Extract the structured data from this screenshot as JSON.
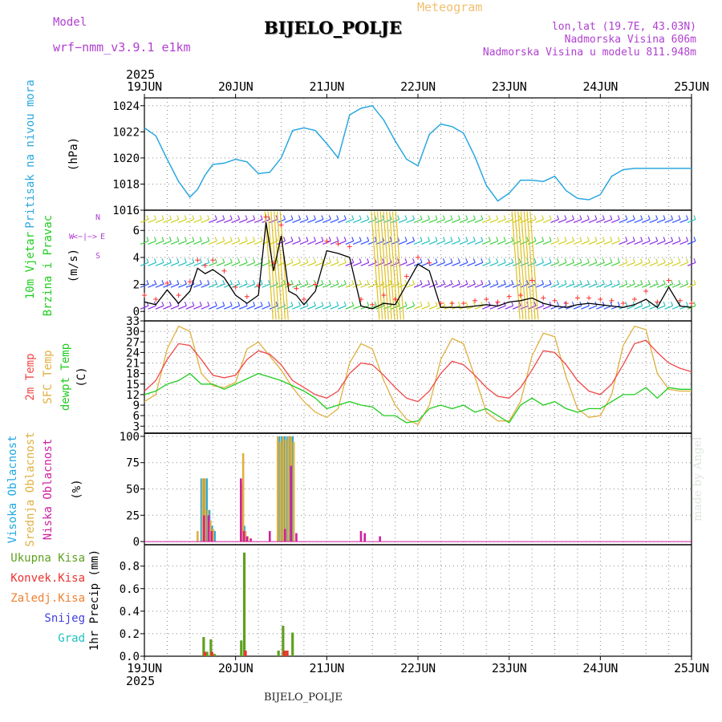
{
  "header": {
    "model_label": "Model",
    "model_name": "wrf−nmm_v3.9.1  e1km",
    "station": "BIJELO_POLJE",
    "meteogram_label": "Meteogram",
    "lonlat": "lon,lat (19.7E, 43.03N)",
    "altitude": "Nadmorska Visina 606m",
    "model_altitude": "Nadmorska Visina u modelu 811.948m"
  },
  "footer": {
    "station": "BIJELO_POLJE",
    "credit": "made by Angel"
  },
  "colors": {
    "pressure": "#2aa8e0",
    "wind_speed": "#000000",
    "gust_marker": "#ff3030",
    "temp_2m": "#f04848",
    "temp_sfc": "#e0b040",
    "dewpoint": "#20cc20",
    "cloud_high": "#20a8e0",
    "cloud_mid": "#e0b040",
    "cloud_low": "#d020a0",
    "precip_total": "#60a020",
    "precip_conv": "#f03030"
  },
  "chart_data": [
    {
      "type": "line",
      "id": "pressure",
      "panel_labels": [
        "Pritisak na nivou mora",
        "(hPa)"
      ],
      "x_unit": "hours since 2025-06-19 00:00 UTC",
      "xlim": [
        0,
        144
      ],
      "ylim": [
        1016,
        1024.6
      ],
      "yticks": [
        1016,
        1018,
        1020,
        1022,
        1024
      ],
      "grid": true,
      "series": [
        {
          "x": [
            0,
            3,
            6,
            9,
            12,
            14,
            16,
            18,
            21,
            24,
            27,
            30,
            33,
            36,
            39,
            42,
            45,
            48,
            51,
            54,
            57,
            60,
            63,
            66,
            69,
            72,
            75,
            78,
            81,
            84,
            87,
            90,
            93,
            96,
            99,
            102,
            105,
            108,
            111,
            114,
            117,
            120,
            123,
            126,
            129,
            132,
            135,
            138,
            141,
            144
          ],
          "y": [
            1022.3,
            1021.7,
            1019.9,
            1018.2,
            1017.0,
            1017.6,
            1018.7,
            1019.5,
            1019.6,
            1019.9,
            1019.7,
            1018.8,
            1018.9,
            1020.0,
            1022.1,
            1022.3,
            1022.1,
            1021.1,
            1020.0,
            1023.3,
            1023.8,
            1024.0,
            1022.9,
            1021.3,
            1019.9,
            1019.4,
            1021.8,
            1022.6,
            1022.4,
            1021.9,
            1020.1,
            1017.9,
            1016.7,
            1017.3,
            1018.3,
            1018.3,
            1018.2,
            1018.6,
            1017.5,
            1016.9,
            1016.8,
            1017.2,
            1018.6,
            1019.1,
            1019.2,
            1019.2,
            1019.2,
            1019.2,
            1019.2,
            1019.2
          ]
        }
      ]
    },
    {
      "type": "line",
      "id": "wind",
      "panel_labels": [
        "10m Vjetar",
        "Brzina i Pravac",
        "(m/s)"
      ],
      "compass_labels": [
        "W",
        "<",
        "−",
        "|",
        "−",
        ">",
        "E",
        "S",
        "N"
      ],
      "x_unit": "hours since 2025-06-19 00:00 UTC",
      "xlim": [
        0,
        144
      ],
      "ylim": [
        -0.7,
        7.5
      ],
      "yticks": [
        0,
        2,
        4,
        6
      ],
      "grid": true,
      "series": [
        {
          "name": "speed",
          "x": [
            0,
            3,
            6,
            9,
            12,
            14,
            16,
            18,
            21,
            24,
            27,
            30,
            32,
            34,
            36,
            38,
            40,
            42,
            45,
            48,
            51,
            54,
            57,
            60,
            63,
            66,
            69,
            72,
            75,
            78,
            81,
            84,
            87,
            90,
            93,
            96,
            99,
            102,
            105,
            108,
            111,
            114,
            117,
            120,
            123,
            126,
            129,
            132,
            135,
            138,
            141,
            144
          ],
          "y": [
            0.7,
            0.5,
            1.6,
            0.6,
            1.5,
            3.2,
            2.8,
            3.1,
            2.5,
            1.2,
            0.6,
            1.2,
            6.6,
            3.0,
            5.6,
            1.5,
            1.2,
            0.5,
            1.5,
            4.5,
            4.3,
            4.0,
            0.4,
            0.2,
            0.6,
            0.5,
            2.0,
            3.5,
            3.0,
            0.3,
            0.3,
            0.3,
            0.4,
            0.5,
            0.4,
            0.7,
            0.8,
            1.0,
            0.6,
            0.4,
            0.3,
            0.5,
            0.6,
            0.5,
            0.4,
            0.3,
            0.5,
            0.9,
            0.3,
            1.8,
            0.4,
            0.3
          ]
        },
        {
          "name": "gust",
          "x": [
            0,
            3,
            6,
            9,
            12,
            14,
            16,
            18,
            21,
            24,
            27,
            30,
            32,
            34,
            36,
            38,
            40,
            42,
            45,
            48,
            51,
            54,
            57,
            60,
            63,
            66,
            69,
            72,
            75,
            78,
            81,
            84,
            87,
            90,
            93,
            96,
            99,
            102,
            105,
            108,
            111,
            114,
            117,
            120,
            123,
            126,
            129,
            132,
            135,
            138,
            141,
            144
          ],
          "y": [
            1.2,
            0.9,
            2.1,
            1.2,
            2.2,
            3.8,
            3.4,
            3.8,
            3.0,
            1.8,
            1.1,
            1.9,
            7.0,
            3.6,
            6.4,
            2.0,
            1.7,
            0.9,
            2.0,
            5.2,
            5.0,
            4.8,
            0.9,
            0.5,
            1.2,
            0.9,
            2.6,
            4.0,
            3.6,
            0.6,
            0.6,
            0.6,
            0.8,
            0.9,
            0.7,
            1.1,
            1.2,
            2.3,
            1.0,
            0.8,
            0.6,
            1.0,
            1.0,
            0.9,
            0.8,
            0.6,
            0.9,
            1.5,
            0.7,
            2.3,
            0.8,
            0.6
          ]
        }
      ]
    },
    {
      "type": "line",
      "id": "temperature",
      "panel_labels": [
        "2m Temp",
        "SFC Temp",
        "dewpt Temp",
        "(C)"
      ],
      "x_unit": "hours since 2025-06-19 00:00 UTC",
      "xlim": [
        0,
        144
      ],
      "ylim": [
        1,
        33
      ],
      "yticks": [
        3,
        6,
        9,
        12,
        15,
        18,
        21,
        24,
        27,
        30,
        33
      ],
      "grid": true,
      "series": [
        {
          "name": "2m Temp",
          "x": [
            0,
            3,
            6,
            9,
            12,
            15,
            18,
            21,
            24,
            27,
            30,
            33,
            36,
            39,
            42,
            45,
            48,
            51,
            54,
            57,
            60,
            63,
            66,
            69,
            72,
            75,
            78,
            81,
            84,
            87,
            90,
            93,
            96,
            99,
            102,
            105,
            108,
            111,
            114,
            117,
            120,
            123,
            126,
            129,
            132,
            135,
            138,
            141,
            144
          ],
          "y": [
            13,
            16,
            22,
            26.5,
            26,
            22,
            17.5,
            16.8,
            17.5,
            22,
            24.5,
            23.5,
            20.5,
            16,
            14,
            12,
            11,
            13,
            18,
            21,
            20.5,
            17.5,
            14,
            11,
            10,
            13,
            18,
            21.5,
            20.5,
            17.5,
            14,
            11.5,
            11,
            14,
            19,
            24.5,
            24,
            20.5,
            16,
            13,
            12,
            15,
            20.5,
            26.5,
            27.5,
            24,
            21,
            19.5,
            18.5
          ]
        },
        {
          "name": "SFC Temp",
          "x": [
            0,
            3,
            6,
            9,
            12,
            15,
            18,
            21,
            24,
            27,
            30,
            33,
            36,
            39,
            42,
            45,
            48,
            51,
            54,
            57,
            60,
            63,
            66,
            69,
            72,
            75,
            78,
            81,
            84,
            87,
            90,
            93,
            96,
            99,
            102,
            105,
            108,
            111,
            114,
            117,
            120,
            123,
            126,
            129,
            132,
            135,
            138,
            141,
            144
          ],
          "y": [
            10,
            12,
            25,
            31.5,
            30,
            18,
            14.5,
            14,
            15.5,
            25,
            27,
            23,
            19,
            14,
            10,
            7,
            5.5,
            8,
            21,
            26.5,
            25,
            16,
            9,
            5,
            3.5,
            9,
            22,
            28,
            26.5,
            17,
            7,
            4.5,
            4.5,
            10,
            23,
            29.5,
            28.5,
            17,
            8,
            5.5,
            6,
            12,
            26,
            31.5,
            30.5,
            18,
            13.5,
            13,
            13
          ]
        },
        {
          "name": "dewpt Temp",
          "x": [
            0,
            3,
            6,
            9,
            12,
            15,
            18,
            21,
            24,
            27,
            30,
            33,
            36,
            39,
            42,
            45,
            48,
            51,
            54,
            57,
            60,
            63,
            66,
            69,
            72,
            75,
            78,
            81,
            84,
            87,
            90,
            93,
            96,
            99,
            102,
            105,
            108,
            111,
            114,
            117,
            120,
            123,
            126,
            129,
            132,
            135,
            138,
            141,
            144
          ],
          "y": [
            12,
            13,
            15,
            16,
            18,
            15,
            15,
            13.5,
            15,
            16.5,
            18,
            17,
            16,
            14.5,
            13,
            11,
            8,
            9,
            10,
            9,
            8.5,
            6,
            6,
            4,
            4.5,
            8,
            9,
            8,
            9,
            7,
            8,
            6,
            4,
            9,
            11,
            9,
            10,
            8,
            7,
            8,
            8,
            10,
            12,
            12,
            14,
            11,
            14,
            13.5,
            13.5
          ]
        }
      ]
    },
    {
      "type": "bar",
      "id": "clouds",
      "panel_labels": [
        "Visoka Oblacnost",
        "Srednja Oblacnost",
        "Niska Oblacnost",
        "(%)"
      ],
      "x_unit": "hours since 2025-06-19 00:00 UTC",
      "xlim": [
        0,
        144
      ],
      "ylim": [
        -3,
        103
      ],
      "yticks": [
        0,
        25,
        50,
        75,
        100
      ],
      "grid": true,
      "series": [
        {
          "name": "Visoka Oblacnost",
          "x": [
            15,
            15.7,
            16.4,
            17.1,
            17.8,
            18.5,
            25.7,
            26.3,
            35.5,
            36.2,
            36.9,
            37.6,
            38.3,
            39.0
          ],
          "y": [
            60,
            60,
            60,
            30,
            15,
            10,
            30,
            15,
            100,
            100,
            100,
            100,
            100,
            100
          ]
        },
        {
          "name": "Srednja Oblacnost",
          "x": [
            14,
            15.3,
            16,
            16.7,
            17.4,
            18.1,
            25.5,
            26.0,
            26.6,
            27.2,
            35.1,
            35.8,
            36.5,
            37.2,
            37.9,
            38.6,
            39.3
          ],
          "y": [
            10,
            60,
            60,
            30,
            20,
            12,
            55,
            84,
            10,
            5,
            100,
            95,
            100,
            97,
            100,
            100,
            95
          ]
        },
        {
          "name": "Niska Oblacnost",
          "x": [
            15.7,
            16.9,
            17.7,
            25.4,
            26.2,
            27.0,
            28,
            33,
            37,
            38.6,
            40,
            57,
            58,
            62
          ],
          "y": [
            25,
            25,
            10,
            60,
            10,
            5,
            3,
            10,
            12,
            72,
            8,
            10,
            8,
            5
          ]
        }
      ]
    },
    {
      "type": "bar",
      "id": "precipitation",
      "panel_labels": [
        "Ukupna Kisa",
        "Konvek.Kisa",
        "Zaledj.Kisa",
        "Snijeg",
        "Grad",
        "1hr Precip (mm)"
      ],
      "x_unit": "hours since 2025-06-19 00:00 UTC",
      "xlim": [
        0,
        144
      ],
      "ylim": [
        0,
        0.99
      ],
      "yticks": [
        0,
        0.2,
        0.4,
        0.6,
        0.8
      ],
      "grid": true,
      "series": [
        {
          "name": "Ukupna Kisa",
          "x": [
            15.6,
            16.5,
            17.5,
            18.5,
            25.5,
            26.3,
            35.3,
            36.5,
            37.3,
            39.0
          ],
          "y": [
            0.17,
            0.04,
            0.15,
            0.02,
            0.14,
            0.92,
            0.05,
            0.27,
            0.05,
            0.21
          ]
        },
        {
          "name": "Konvek.Kisa",
          "x": [
            15.9,
            17.8,
            26.6,
            36.8,
            37.6
          ],
          "y": [
            0.04,
            0.04,
            0.05,
            0.05,
            0.05
          ]
        }
      ]
    }
  ],
  "time_axis": {
    "year": "2025",
    "labels": [
      "19JUN",
      "20JUN",
      "21JUN",
      "22JUN",
      "23JUN",
      "24JUN",
      "25JUN"
    ],
    "label_hours": [
      0,
      24,
      48,
      72,
      96,
      120,
      144
    ]
  }
}
